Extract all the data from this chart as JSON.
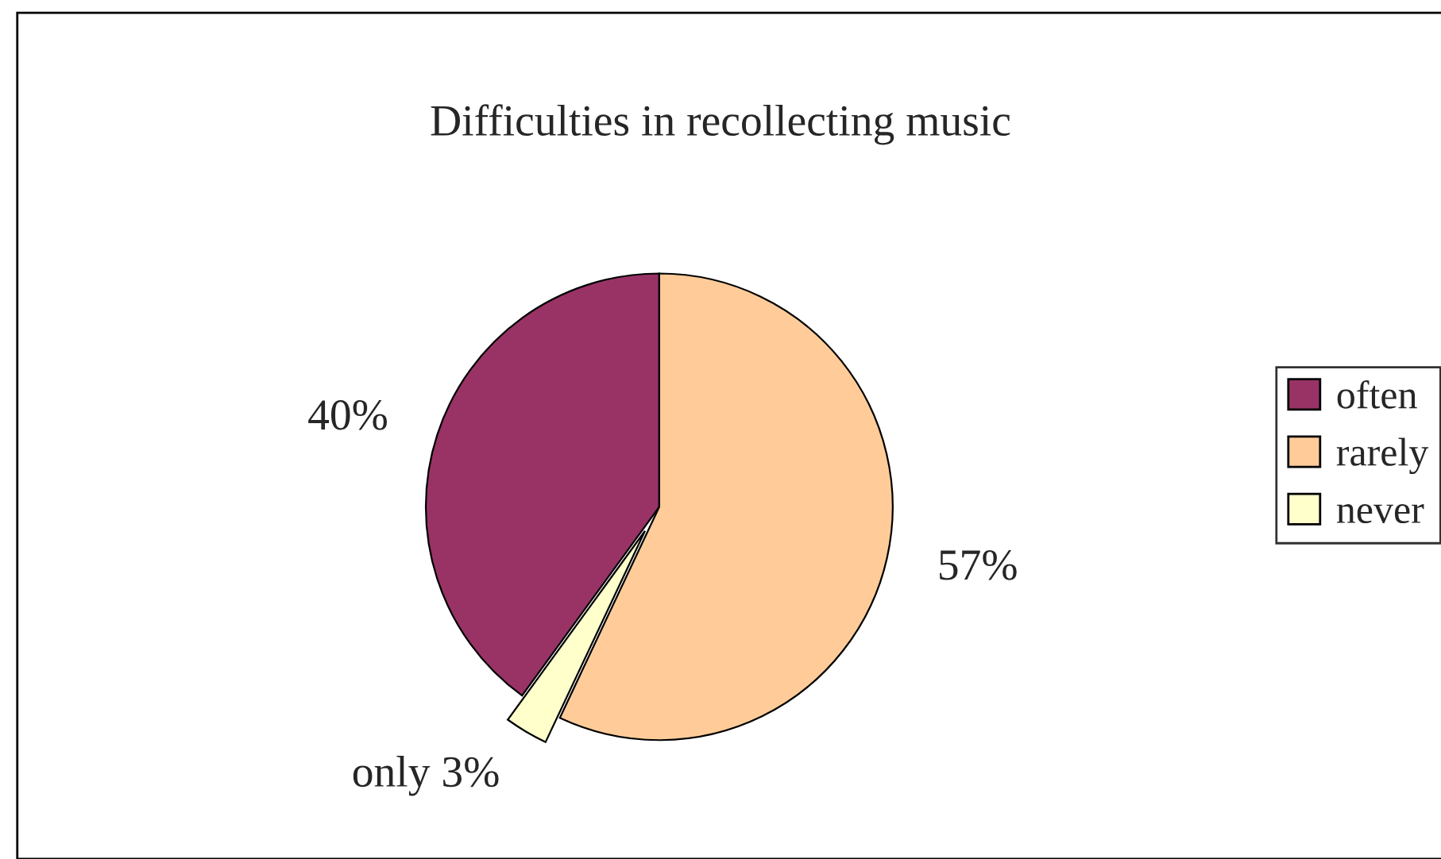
{
  "chart_data": {
    "type": "pie",
    "title": "Difficulties in recollecting music",
    "categories": [
      "often",
      "rarely",
      "never"
    ],
    "values": [
      40,
      57,
      3
    ],
    "colors": [
      "#993366",
      "#ffcc99",
      "#ffffcc"
    ],
    "value_labels": [
      "40%",
      "57%",
      "only 3%"
    ],
    "legend": "right"
  }
}
